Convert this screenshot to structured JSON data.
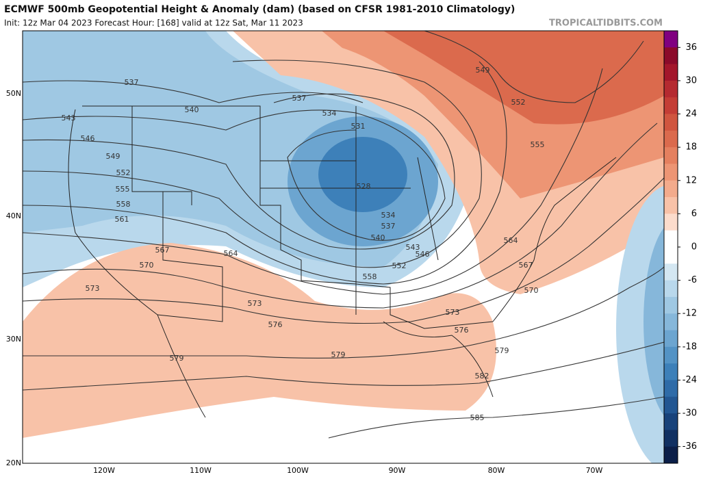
{
  "header": {
    "title": "ECMWF 500mb Geopotential Height & Anomaly (dam) (based on CFSR 1981-2010 Climatology)",
    "subtitle": "Init: 12z Mar 04 2023   Forecast Hour: [168]   valid at 12z Sat, Mar 11 2023",
    "watermark": "TROPICALTIDBITS.COM"
  },
  "map": {
    "lat_labels": [
      "50N",
      "40N",
      "30N",
      "20N"
    ],
    "lon_labels": [
      "120W",
      "110W",
      "100W",
      "90W",
      "80W",
      "70W"
    ],
    "contour_labels": [
      537,
      543,
      546,
      549,
      552,
      555,
      558,
      561,
      540,
      537,
      534,
      531,
      528,
      534,
      537,
      540,
      543,
      546,
      552,
      558,
      564,
      567,
      570,
      573,
      573,
      576,
      579,
      579,
      573,
      576,
      579,
      582,
      585,
      549,
      552,
      555,
      564,
      567,
      570
    ]
  },
  "colorbar": {
    "range": [
      39,
      -39
    ],
    "ticks": [
      36,
      30,
      24,
      18,
      12,
      6,
      0,
      -6,
      -12,
      -18,
      -24,
      -30,
      -36
    ],
    "colors": [
      "#800080",
      "#8b0a2a",
      "#a3162b",
      "#b52a30",
      "#c43d35",
      "#d0553f",
      "#db6a4d",
      "#e5805f",
      "#ed9574",
      "#f3ab8c",
      "#f8c2a8",
      "#fcdccc",
      "#ffffff",
      "#ffffff",
      "#d4e7f2",
      "#b9d8ec",
      "#9fc8e3",
      "#86b7da",
      "#6ca5d0",
      "#5393c5",
      "#3d80b9",
      "#2e6ba8",
      "#225692",
      "#18427a",
      "#113062",
      "#0b1e48"
    ]
  }
}
